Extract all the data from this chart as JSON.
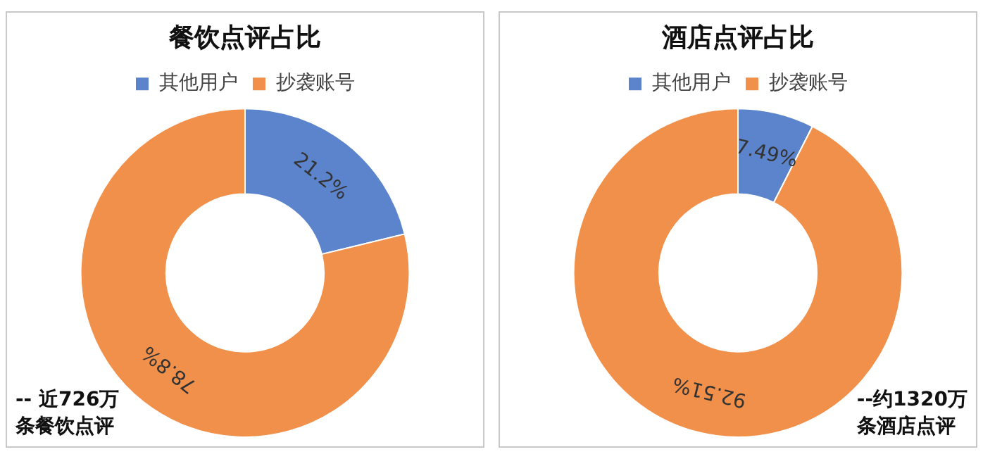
{
  "chart_data": [
    {
      "type": "donut",
      "title": "餐饮点评占比",
      "categories": [
        "其他用户",
        "抄袭账号"
      ],
      "values": [
        21.2,
        78.8
      ],
      "colors": [
        "#5b84cc",
        "#f0904a"
      ],
      "value_labels": [
        "21.2%",
        "78.8%"
      ],
      "legend": "top",
      "annotations": [
        "-- 近726万",
        "条餐饮点评"
      ]
    },
    {
      "type": "donut",
      "title": "酒店点评占比",
      "categories": [
        "其他用户",
        "抄袭账号"
      ],
      "values": [
        7.49,
        92.51
      ],
      "colors": [
        "#5b84cc",
        "#f0904a"
      ],
      "value_labels": [
        "7.49%",
        "92.51%"
      ],
      "legend": "top",
      "annotations": [
        "--约1320万",
        "条酒店点评"
      ]
    }
  ]
}
